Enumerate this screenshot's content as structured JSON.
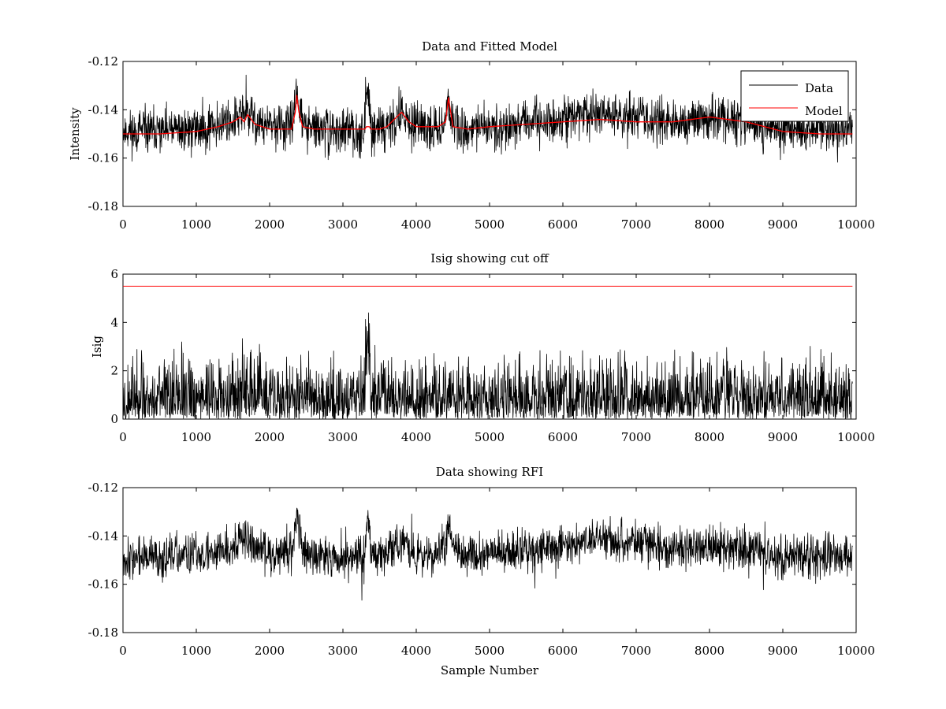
{
  "chart_data": [
    {
      "type": "line",
      "title": "Data and Fitted Model",
      "xlabel": "",
      "ylabel": "Intensity",
      "xlim": [
        0,
        10000
      ],
      "ylim": [
        -0.18,
        -0.12
      ],
      "xticks": [
        0,
        1000,
        2000,
        3000,
        4000,
        5000,
        6000,
        7000,
        8000,
        9000,
        10000
      ],
      "yticks": [
        -0.12,
        -0.14,
        -0.16,
        -0.18
      ],
      "xtick_labels": [
        "0",
        "1000",
        "2000",
        "3000",
        "4000",
        "5000",
        "6000",
        "7000",
        "8000",
        "9000",
        "10000"
      ],
      "ytick_labels": [
        "-0.12",
        "-0.14",
        "-0.16",
        "-0.18"
      ],
      "legend": {
        "position": "top-right",
        "entries": [
          "Data",
          "Model"
        ]
      },
      "series": [
        {
          "name": "Data",
          "color": "#000000",
          "style": "noisy",
          "noise_amplitude": 0.0045,
          "seed": 11,
          "x": [
            0,
            500,
            1000,
            1300,
            1500,
            1600,
            1650,
            1700,
            1750,
            1800,
            2000,
            2300,
            2350,
            2370,
            2400,
            2450,
            2600,
            3000,
            3300,
            3320,
            3330,
            3360,
            3380,
            3400,
            3500,
            3600,
            3700,
            3800,
            3900,
            4000,
            4300,
            4400,
            4440,
            4460,
            4500,
            4700,
            5000,
            5500,
            6000,
            6300,
            6600,
            7000,
            7500,
            8000,
            8500,
            9000,
            9500,
            9950
          ],
          "y": [
            -0.149,
            -0.149,
            -0.148,
            -0.146,
            -0.144,
            -0.143,
            -0.141,
            -0.142,
            -0.143,
            -0.145,
            -0.147,
            -0.147,
            -0.137,
            -0.129,
            -0.137,
            -0.146,
            -0.148,
            -0.149,
            -0.148,
            -0.135,
            -0.134,
            -0.135,
            -0.146,
            -0.148,
            -0.148,
            -0.147,
            -0.144,
            -0.142,
            -0.145,
            -0.148,
            -0.147,
            -0.145,
            -0.134,
            -0.137,
            -0.147,
            -0.148,
            -0.147,
            -0.146,
            -0.144,
            -0.142,
            -0.141,
            -0.143,
            -0.145,
            -0.144,
            -0.145,
            -0.148,
            -0.149,
            -0.148
          ]
        },
        {
          "name": "Model",
          "color": "#ff0000",
          "style": "smooth",
          "x": [
            0,
            500,
            1000,
            1300,
            1500,
            1600,
            1650,
            1700,
            1750,
            1800,
            2000,
            2300,
            2350,
            2370,
            2400,
            2450,
            2600,
            3000,
            3300,
            3320,
            3340,
            3360,
            3380,
            3400,
            3500,
            3600,
            3700,
            3800,
            3900,
            4000,
            4300,
            4400,
            4440,
            4460,
            4500,
            4700,
            5000,
            5500,
            6000,
            6500,
            7000,
            7500,
            8000,
            8500,
            9000,
            9500,
            9950
          ],
          "y": [
            -0.15,
            -0.15,
            -0.149,
            -0.147,
            -0.145,
            -0.143,
            -0.145,
            -0.142,
            -0.144,
            -0.146,
            -0.148,
            -0.148,
            -0.141,
            -0.134,
            -0.141,
            -0.147,
            -0.148,
            -0.148,
            -0.148,
            -0.147,
            -0.147,
            -0.147,
            -0.148,
            -0.148,
            -0.148,
            -0.147,
            -0.144,
            -0.141,
            -0.145,
            -0.147,
            -0.147,
            -0.145,
            -0.135,
            -0.139,
            -0.147,
            -0.148,
            -0.147,
            -0.146,
            -0.145,
            -0.144,
            -0.145,
            -0.145,
            -0.143,
            -0.145,
            -0.149,
            -0.15,
            -0.15
          ]
        }
      ]
    },
    {
      "type": "line",
      "title": "Isig showing cut off",
      "xlabel": "",
      "ylabel": "Isig",
      "xlim": [
        0,
        10000
      ],
      "ylim": [
        0,
        6
      ],
      "xticks": [
        0,
        1000,
        2000,
        3000,
        4000,
        5000,
        6000,
        7000,
        8000,
        9000,
        10000
      ],
      "yticks": [
        0,
        2,
        4,
        6
      ],
      "xtick_labels": [
        "0",
        "1000",
        "2000",
        "3000",
        "4000",
        "5000",
        "6000",
        "7000",
        "8000",
        "9000",
        "10000"
      ],
      "ytick_labels": [
        "0",
        "2",
        "4",
        "6"
      ],
      "series": [
        {
          "color": "#000000",
          "style": "abs-noise",
          "noise_amplitude": 0.85,
          "seed": 23,
          "x": [
            0,
            1500,
            1600,
            1650,
            1700,
            2000,
            3000,
            3300,
            3310,
            3360,
            3380,
            3400,
            4000,
            5000,
            6000,
            6600,
            7000,
            8000,
            9000,
            9950
          ],
          "y": [
            0.8,
            0.8,
            1.0,
            1.2,
            1.1,
            0.8,
            0.8,
            0.8,
            3.2,
            3.2,
            0.1,
            0.9,
            0.8,
            0.8,
            0.8,
            1.0,
            0.8,
            0.8,
            0.8,
            0.8
          ]
        },
        {
          "name": "Cut off",
          "color": "#ff0000",
          "style": "line",
          "x": [
            0,
            9950
          ],
          "y": [
            5.5,
            5.5
          ]
        }
      ]
    },
    {
      "type": "line",
      "title": "Data showing RFI",
      "xlabel": "Sample Number",
      "ylabel": "",
      "xlim": [
        0,
        10000
      ],
      "ylim": [
        -0.18,
        -0.12
      ],
      "xticks": [
        0,
        1000,
        2000,
        3000,
        4000,
        5000,
        6000,
        7000,
        8000,
        9000,
        10000
      ],
      "yticks": [
        -0.12,
        -0.14,
        -0.16,
        -0.18
      ],
      "xtick_labels": [
        "0",
        "1000",
        "2000",
        "3000",
        "4000",
        "5000",
        "6000",
        "7000",
        "8000",
        "9000",
        "10000"
      ],
      "ytick_labels": [
        "-0.12",
        "-0.14",
        "-0.16",
        "-0.18"
      ],
      "series": [
        {
          "color": "#000000",
          "style": "noisy",
          "noise_amplitude": 0.0042,
          "seed": 37,
          "x": [
            0,
            500,
            1000,
            1300,
            1500,
            1650,
            1750,
            1800,
            2000,
            2300,
            2350,
            2370,
            2400,
            2450,
            2600,
            3000,
            3300,
            3320,
            3330,
            3360,
            3380,
            3400,
            3500,
            3600,
            3700,
            3800,
            3900,
            4000,
            4300,
            4400,
            4440,
            4460,
            4500,
            4700,
            5000,
            5500,
            6000,
            6300,
            6600,
            7000,
            7500,
            8000,
            8500,
            9000,
            9500,
            9950
          ],
          "y": [
            -0.149,
            -0.149,
            -0.148,
            -0.146,
            -0.144,
            -0.141,
            -0.143,
            -0.145,
            -0.147,
            -0.147,
            -0.137,
            -0.129,
            -0.137,
            -0.146,
            -0.148,
            -0.149,
            -0.148,
            -0.135,
            -0.134,
            -0.135,
            -0.146,
            -0.148,
            -0.148,
            -0.147,
            -0.144,
            -0.142,
            -0.145,
            -0.148,
            -0.147,
            -0.145,
            -0.135,
            -0.137,
            -0.147,
            -0.148,
            -0.147,
            -0.146,
            -0.144,
            -0.142,
            -0.141,
            -0.143,
            -0.145,
            -0.144,
            -0.145,
            -0.148,
            -0.149,
            -0.148
          ]
        }
      ]
    }
  ]
}
